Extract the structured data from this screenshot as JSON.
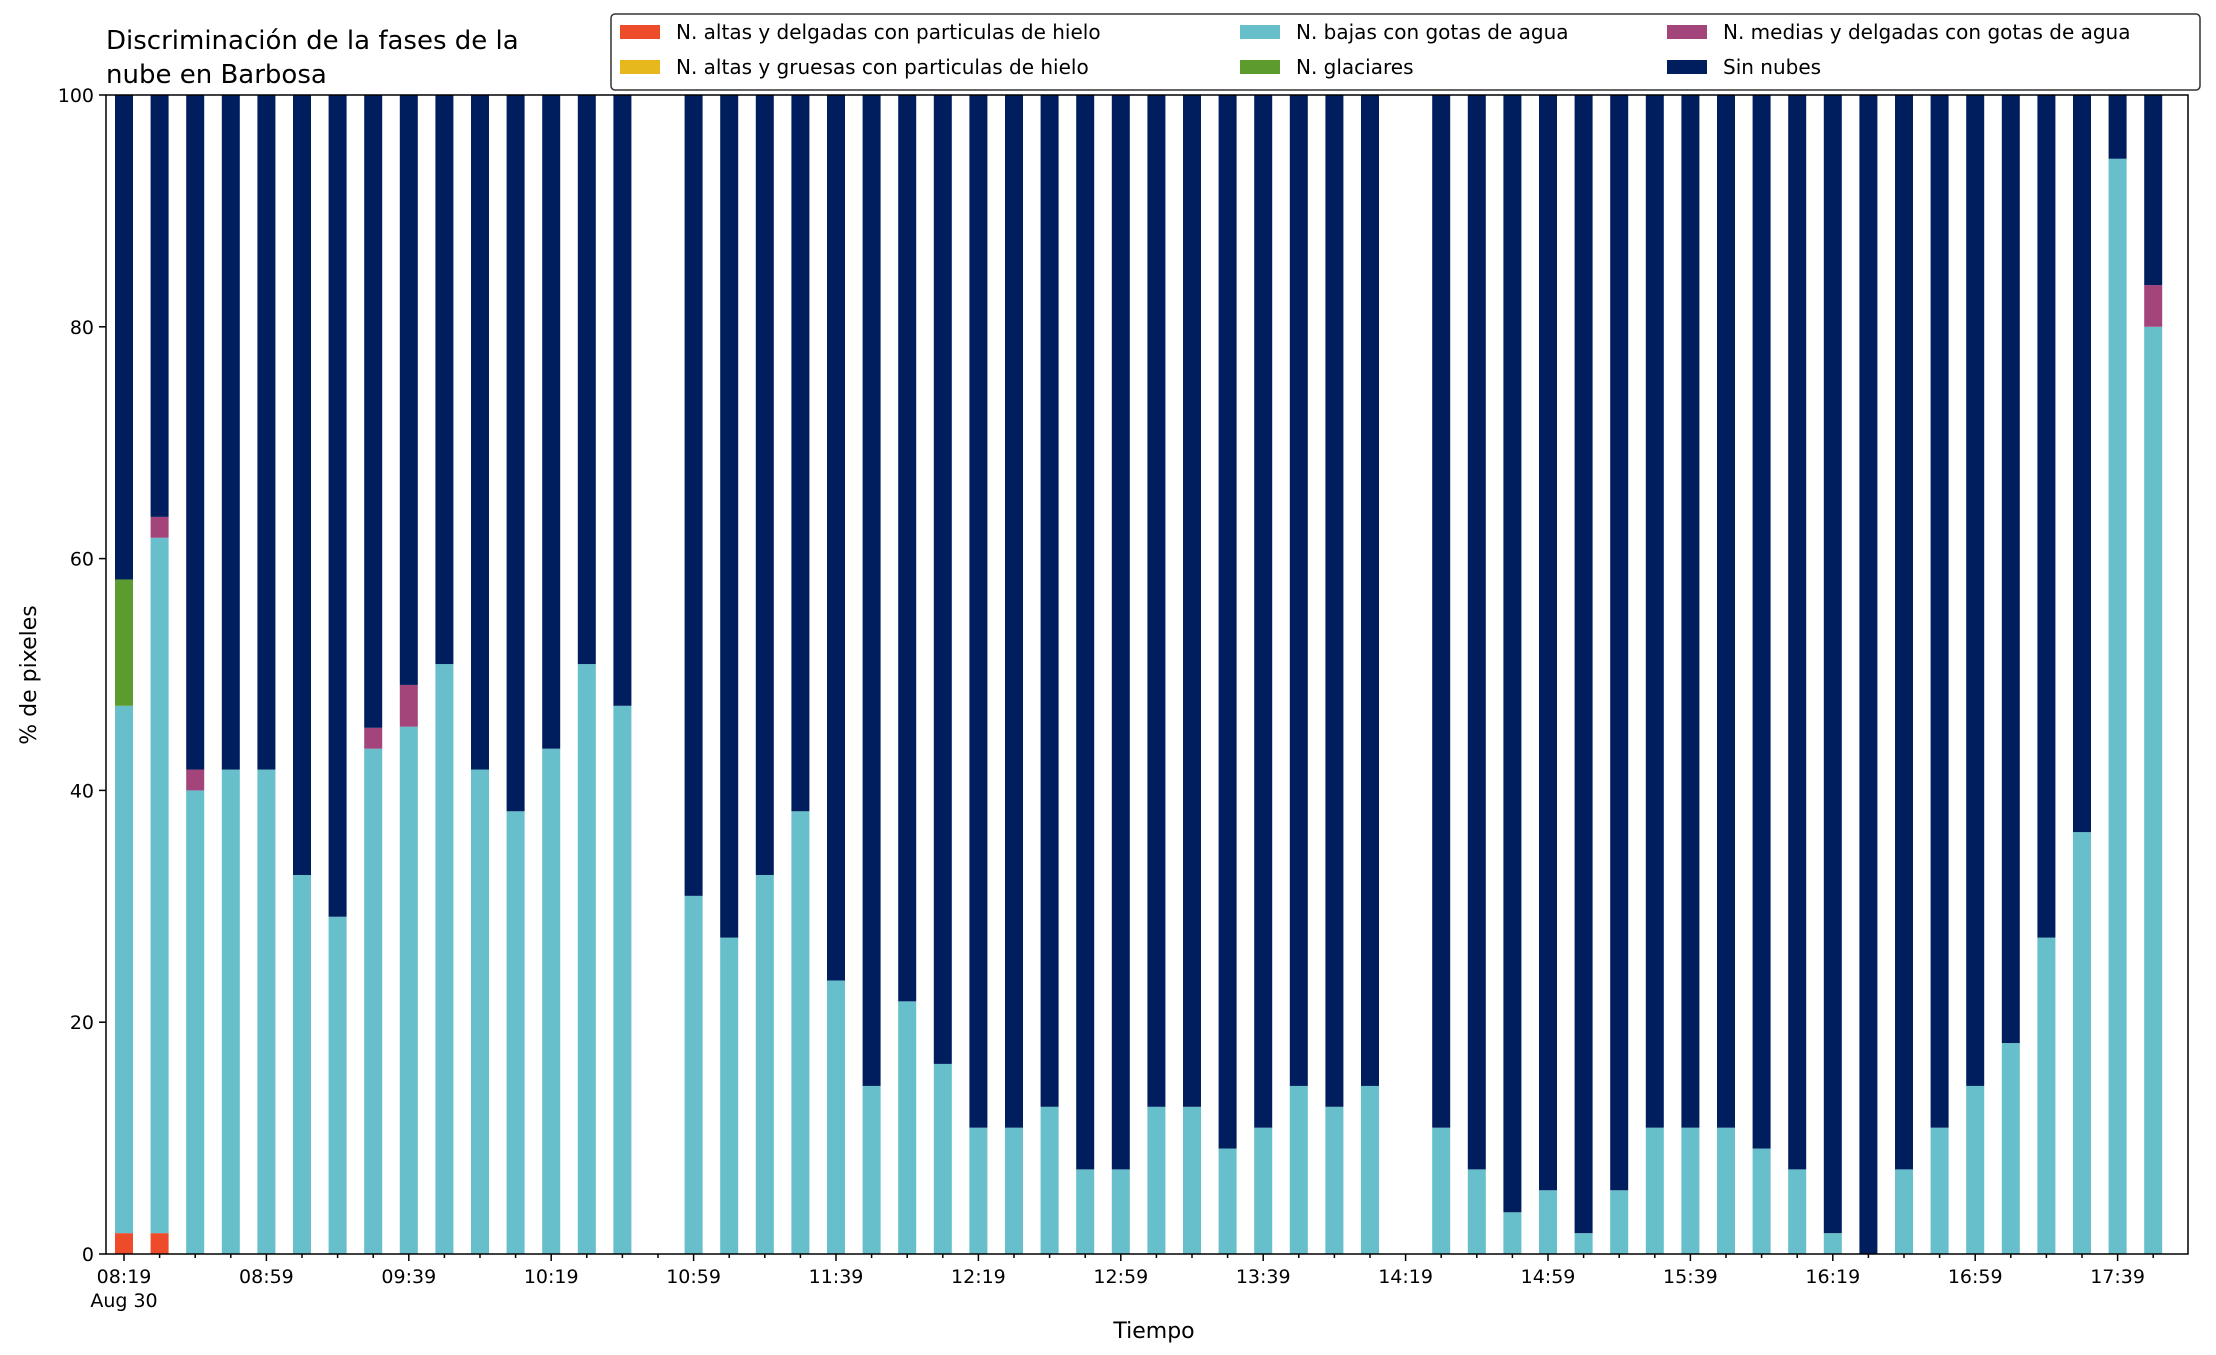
{
  "chart_data": {
    "type": "bar",
    "stacked": true,
    "title_lines": [
      "Discriminación de la fases de la",
      "nube en Barbosa"
    ],
    "xlabel": "Tiempo",
    "ylabel": "% de pixeles",
    "ylim": [
      0,
      100
    ],
    "yticks": [
      0,
      20,
      40,
      60,
      80,
      100
    ],
    "legend_position": "top-right",
    "x_ticks": [
      "08:19",
      "08:59",
      "09:39",
      "10:19",
      "10:59",
      "11:39",
      "12:19",
      "12:59",
      "13:39",
      "14:19",
      "14:59",
      "15:39",
      "16:19",
      "16:59",
      "17:39"
    ],
    "x_date_label": "Aug 30",
    "x_start": "08:19",
    "x_step_minutes": 10,
    "x_slots": 59,
    "legend": [
      {
        "key": "hielo_delgadas",
        "label": "N. altas y delgadas con particulas de hielo",
        "color": "#ee4b2b"
      },
      {
        "key": "hielo_gruesas",
        "label": "N. altas y gruesas con particulas de hielo",
        "color": "#e6b81c"
      },
      {
        "key": "bajas_agua",
        "label": "N. bajas con gotas de agua",
        "color": "#66bfcb"
      },
      {
        "key": "glaciares",
        "label": "N. glaciares",
        "color": "#5c9c2f"
      },
      {
        "key": "medias_agua",
        "label": "N. medias y delgadas con gotas de agua",
        "color": "#a3447a"
      },
      {
        "key": "sin_nubes",
        "label": "Sin nubes",
        "color": "#001e5e"
      }
    ],
    "stack_order": [
      "hielo_delgadas",
      "hielo_gruesas",
      "bajas_agua",
      "glaciares",
      "medias_agua",
      "sin_nubes"
    ],
    "bars": [
      {
        "time": "08:19",
        "hielo_delgadas": 1.8,
        "hielo_gruesas": 0,
        "bajas_agua": 45.5,
        "glaciares": 10.9,
        "medias_agua": 0,
        "sin_nubes": 41.8
      },
      {
        "time": "08:29",
        "hielo_delgadas": 1.8,
        "hielo_gruesas": 0,
        "bajas_agua": 60.0,
        "glaciares": 0,
        "medias_agua": 1.8,
        "sin_nubes": 36.4
      },
      {
        "time": "08:39",
        "hielo_delgadas": 0,
        "hielo_gruesas": 0,
        "bajas_agua": 40.0,
        "glaciares": 0,
        "medias_agua": 1.8,
        "sin_nubes": 58.2
      },
      {
        "time": "08:49",
        "hielo_delgadas": 0,
        "hielo_gruesas": 0,
        "bajas_agua": 41.8,
        "glaciares": 0,
        "medias_agua": 0,
        "sin_nubes": 58.2
      },
      {
        "time": "08:59",
        "hielo_delgadas": 0,
        "hielo_gruesas": 0,
        "bajas_agua": 41.8,
        "glaciares": 0,
        "medias_agua": 0,
        "sin_nubes": 58.2
      },
      {
        "time": "09:09",
        "hielo_delgadas": 0,
        "hielo_gruesas": 0,
        "bajas_agua": 32.7,
        "glaciares": 0,
        "medias_agua": 0,
        "sin_nubes": 67.3
      },
      {
        "time": "09:19",
        "hielo_delgadas": 0,
        "hielo_gruesas": 0,
        "bajas_agua": 29.1,
        "glaciares": 0,
        "medias_agua": 0,
        "sin_nubes": 70.9
      },
      {
        "time": "09:29",
        "hielo_delgadas": 0,
        "hielo_gruesas": 0,
        "bajas_agua": 43.6,
        "glaciares": 0,
        "medias_agua": 1.8,
        "sin_nubes": 54.6
      },
      {
        "time": "09:39",
        "hielo_delgadas": 0,
        "hielo_gruesas": 0,
        "bajas_agua": 45.5,
        "glaciares": 0,
        "medias_agua": 3.6,
        "sin_nubes": 50.9
      },
      {
        "time": "09:49",
        "hielo_delgadas": 0,
        "hielo_gruesas": 0,
        "bajas_agua": 50.9,
        "glaciares": 0,
        "medias_agua": 0,
        "sin_nubes": 49.1
      },
      {
        "time": "09:59",
        "hielo_delgadas": 0,
        "hielo_gruesas": 0,
        "bajas_agua": 41.8,
        "glaciares": 0,
        "medias_agua": 0,
        "sin_nubes": 58.2
      },
      {
        "time": "10:09",
        "hielo_delgadas": 0,
        "hielo_gruesas": 0,
        "bajas_agua": 38.2,
        "glaciares": 0,
        "medias_agua": 0,
        "sin_nubes": 61.8
      },
      {
        "time": "10:19",
        "hielo_delgadas": 0,
        "hielo_gruesas": 0,
        "bajas_agua": 43.6,
        "glaciares": 0,
        "medias_agua": 0,
        "sin_nubes": 56.4
      },
      {
        "time": "10:29",
        "hielo_delgadas": 0,
        "hielo_gruesas": 0,
        "bajas_agua": 50.9,
        "glaciares": 0,
        "medias_agua": 0,
        "sin_nubes": 49.1
      },
      {
        "time": "10:39",
        "hielo_delgadas": 0,
        "hielo_gruesas": 0,
        "bajas_agua": 47.3,
        "glaciares": 0,
        "medias_agua": 0,
        "sin_nubes": 52.7
      },
      {
        "time": "10:59",
        "hielo_delgadas": 0,
        "hielo_gruesas": 0,
        "bajas_agua": 30.9,
        "glaciares": 0,
        "medias_agua": 0,
        "sin_nubes": 69.1
      },
      {
        "time": "11:09",
        "hielo_delgadas": 0,
        "hielo_gruesas": 0,
        "bajas_agua": 27.3,
        "glaciares": 0,
        "medias_agua": 0,
        "sin_nubes": 72.7
      },
      {
        "time": "11:19",
        "hielo_delgadas": 0,
        "hielo_gruesas": 0,
        "bajas_agua": 32.7,
        "glaciares": 0,
        "medias_agua": 0,
        "sin_nubes": 67.3
      },
      {
        "time": "11:29",
        "hielo_delgadas": 0,
        "hielo_gruesas": 0,
        "bajas_agua": 38.2,
        "glaciares": 0,
        "medias_agua": 0,
        "sin_nubes": 61.8
      },
      {
        "time": "11:39",
        "hielo_delgadas": 0,
        "hielo_gruesas": 0,
        "bajas_agua": 23.6,
        "glaciares": 0,
        "medias_agua": 0,
        "sin_nubes": 76.4
      },
      {
        "time": "11:49",
        "hielo_delgadas": 0,
        "hielo_gruesas": 0,
        "bajas_agua": 14.5,
        "glaciares": 0,
        "medias_agua": 0,
        "sin_nubes": 85.5
      },
      {
        "time": "11:59",
        "hielo_delgadas": 0,
        "hielo_gruesas": 0,
        "bajas_agua": 21.8,
        "glaciares": 0,
        "medias_agua": 0,
        "sin_nubes": 78.2
      },
      {
        "time": "12:09",
        "hielo_delgadas": 0,
        "hielo_gruesas": 0,
        "bajas_agua": 16.4,
        "glaciares": 0,
        "medias_agua": 0,
        "sin_nubes": 83.6
      },
      {
        "time": "12:19",
        "hielo_delgadas": 0,
        "hielo_gruesas": 0,
        "bajas_agua": 10.9,
        "glaciares": 0,
        "medias_agua": 0,
        "sin_nubes": 89.1
      },
      {
        "time": "12:29",
        "hielo_delgadas": 0,
        "hielo_gruesas": 0,
        "bajas_agua": 10.9,
        "glaciares": 0,
        "medias_agua": 0,
        "sin_nubes": 89.1
      },
      {
        "time": "12:39",
        "hielo_delgadas": 0,
        "hielo_gruesas": 0,
        "bajas_agua": 12.7,
        "glaciares": 0,
        "medias_agua": 0,
        "sin_nubes": 87.3
      },
      {
        "time": "12:49",
        "hielo_delgadas": 0,
        "hielo_gruesas": 0,
        "bajas_agua": 7.3,
        "glaciares": 0,
        "medias_agua": 0,
        "sin_nubes": 92.7
      },
      {
        "time": "12:59",
        "hielo_delgadas": 0,
        "hielo_gruesas": 0,
        "bajas_agua": 7.3,
        "glaciares": 0,
        "medias_agua": 0,
        "sin_nubes": 92.7
      },
      {
        "time": "13:09",
        "hielo_delgadas": 0,
        "hielo_gruesas": 0,
        "bajas_agua": 12.7,
        "glaciares": 0,
        "medias_agua": 0,
        "sin_nubes": 87.3
      },
      {
        "time": "13:19",
        "hielo_delgadas": 0,
        "hielo_gruesas": 0,
        "bajas_agua": 12.7,
        "glaciares": 0,
        "medias_agua": 0,
        "sin_nubes": 87.3
      },
      {
        "time": "13:29",
        "hielo_delgadas": 0,
        "hielo_gruesas": 0,
        "bajas_agua": 9.1,
        "glaciares": 0,
        "medias_agua": 0,
        "sin_nubes": 90.9
      },
      {
        "time": "13:39",
        "hielo_delgadas": 0,
        "hielo_gruesas": 0,
        "bajas_agua": 10.9,
        "glaciares": 0,
        "medias_agua": 0,
        "sin_nubes": 89.1
      },
      {
        "time": "13:49",
        "hielo_delgadas": 0,
        "hielo_gruesas": 0,
        "bajas_agua": 14.5,
        "glaciares": 0,
        "medias_agua": 0,
        "sin_nubes": 85.5
      },
      {
        "time": "13:59",
        "hielo_delgadas": 0,
        "hielo_gruesas": 0,
        "bajas_agua": 12.7,
        "glaciares": 0,
        "medias_agua": 0,
        "sin_nubes": 87.3
      },
      {
        "time": "14:09",
        "hielo_delgadas": 0,
        "hielo_gruesas": 0,
        "bajas_agua": 14.5,
        "glaciares": 0,
        "medias_agua": 0,
        "sin_nubes": 85.5
      },
      {
        "time": "14:29",
        "hielo_delgadas": 0,
        "hielo_gruesas": 0,
        "bajas_agua": 10.9,
        "glaciares": 0,
        "medias_agua": 0,
        "sin_nubes": 89.1
      },
      {
        "time": "14:39",
        "hielo_delgadas": 0,
        "hielo_gruesas": 0,
        "bajas_agua": 7.3,
        "glaciares": 0,
        "medias_agua": 0,
        "sin_nubes": 92.7
      },
      {
        "time": "14:49",
        "hielo_delgadas": 0,
        "hielo_gruesas": 0,
        "bajas_agua": 3.6,
        "glaciares": 0,
        "medias_agua": 0,
        "sin_nubes": 96.4
      },
      {
        "time": "14:59",
        "hielo_delgadas": 0,
        "hielo_gruesas": 0,
        "bajas_agua": 5.5,
        "glaciares": 0,
        "medias_agua": 0,
        "sin_nubes": 94.5
      },
      {
        "time": "15:09",
        "hielo_delgadas": 0,
        "hielo_gruesas": 0,
        "bajas_agua": 1.8,
        "glaciares": 0,
        "medias_agua": 0,
        "sin_nubes": 98.2
      },
      {
        "time": "15:19",
        "hielo_delgadas": 0,
        "hielo_gruesas": 0,
        "bajas_agua": 5.5,
        "glaciares": 0,
        "medias_agua": 0,
        "sin_nubes": 94.5
      },
      {
        "time": "15:29",
        "hielo_delgadas": 0,
        "hielo_gruesas": 0,
        "bajas_agua": 10.9,
        "glaciares": 0,
        "medias_agua": 0,
        "sin_nubes": 89.1
      },
      {
        "time": "15:39",
        "hielo_delgadas": 0,
        "hielo_gruesas": 0,
        "bajas_agua": 10.9,
        "glaciares": 0,
        "medias_agua": 0,
        "sin_nubes": 89.1
      },
      {
        "time": "15:49",
        "hielo_delgadas": 0,
        "hielo_gruesas": 0,
        "bajas_agua": 10.9,
        "glaciares": 0,
        "medias_agua": 0,
        "sin_nubes": 89.1
      },
      {
        "time": "15:59",
        "hielo_delgadas": 0,
        "hielo_gruesas": 0,
        "bajas_agua": 9.1,
        "glaciares": 0,
        "medias_agua": 0,
        "sin_nubes": 90.9
      },
      {
        "time": "16:09",
        "hielo_delgadas": 0,
        "hielo_gruesas": 0,
        "bajas_agua": 7.3,
        "glaciares": 0,
        "medias_agua": 0,
        "sin_nubes": 92.7
      },
      {
        "time": "16:19",
        "hielo_delgadas": 0,
        "hielo_gruesas": 0,
        "bajas_agua": 1.8,
        "glaciares": 0,
        "medias_agua": 0,
        "sin_nubes": 98.2
      },
      {
        "time": "16:29",
        "hielo_delgadas": 0,
        "hielo_gruesas": 0,
        "bajas_agua": 0,
        "glaciares": 0,
        "medias_agua": 0,
        "sin_nubes": 100.0
      },
      {
        "time": "16:39",
        "hielo_delgadas": 0,
        "hielo_gruesas": 0,
        "bajas_agua": 7.3,
        "glaciares": 0,
        "medias_agua": 0,
        "sin_nubes": 92.7
      },
      {
        "time": "16:49",
        "hielo_delgadas": 0,
        "hielo_gruesas": 0,
        "bajas_agua": 10.9,
        "glaciares": 0,
        "medias_agua": 0,
        "sin_nubes": 89.1
      },
      {
        "time": "16:59",
        "hielo_delgadas": 0,
        "hielo_gruesas": 0,
        "bajas_agua": 14.5,
        "glaciares": 0,
        "medias_agua": 0,
        "sin_nubes": 85.5
      },
      {
        "time": "17:09",
        "hielo_delgadas": 0,
        "hielo_gruesas": 0,
        "bajas_agua": 18.2,
        "glaciares": 0,
        "medias_agua": 0,
        "sin_nubes": 81.8
      },
      {
        "time": "17:19",
        "hielo_delgadas": 0,
        "hielo_gruesas": 0,
        "bajas_agua": 27.3,
        "glaciares": 0,
        "medias_agua": 0,
        "sin_nubes": 72.7
      },
      {
        "time": "17:29",
        "hielo_delgadas": 0,
        "hielo_gruesas": 0,
        "bajas_agua": 36.4,
        "glaciares": 0,
        "medias_agua": 0,
        "sin_nubes": 63.6
      },
      {
        "time": "17:39",
        "hielo_delgadas": 0,
        "hielo_gruesas": 0,
        "bajas_agua": 94.5,
        "glaciares": 0,
        "medias_agua": 0,
        "sin_nubes": 5.5
      },
      {
        "time": "17:49",
        "hielo_delgadas": 0,
        "hielo_gruesas": 0,
        "bajas_agua": 80.0,
        "glaciares": 0,
        "medias_agua": 3.6,
        "sin_nubes": 16.4
      }
    ]
  }
}
